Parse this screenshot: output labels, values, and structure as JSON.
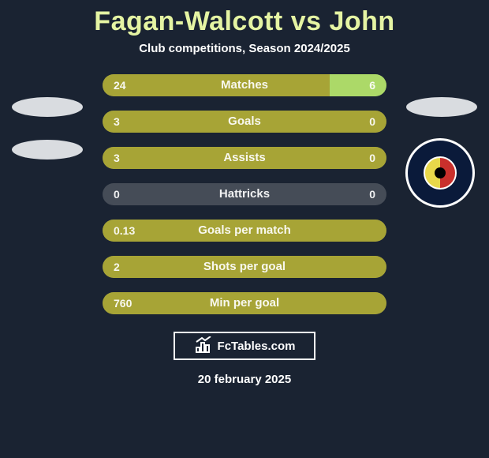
{
  "title": "Fagan-Walcott vs John",
  "subtitle": "Club competitions, Season 2024/2025",
  "footer_brand": "FcTables.com",
  "footer_date": "20 february 2025",
  "colors": {
    "title": "#e5f4a3",
    "background": "#1a2332",
    "bar_neutral": "#454c57",
    "bar_left_fill": "#a7a436",
    "bar_right_fill": "#acd968",
    "bar_full_fill": "#a7a436",
    "text": "#ffffff"
  },
  "stats": [
    {
      "label": "Matches",
      "left_val": "24",
      "right_val": "6",
      "left_pct": 80,
      "right_pct": 20,
      "left_color": "#a7a436",
      "right_color": "#acd968"
    },
    {
      "label": "Goals",
      "left_val": "3",
      "right_val": "0",
      "left_pct": 100,
      "right_pct": 0,
      "left_color": "#a7a436",
      "right_color": "#acd968"
    },
    {
      "label": "Assists",
      "left_val": "3",
      "right_val": "0",
      "left_pct": 100,
      "right_pct": 0,
      "left_color": "#a7a436",
      "right_color": "#acd968"
    },
    {
      "label": "Hattricks",
      "left_val": "0",
      "right_val": "0",
      "left_pct": 0,
      "right_pct": 0,
      "left_color": "#a7a436",
      "right_color": "#acd968"
    },
    {
      "label": "Goals per match",
      "left_val": "0.13",
      "right_val": "",
      "left_pct": 100,
      "right_pct": 0,
      "left_color": "#a7a436",
      "right_color": "#acd968"
    },
    {
      "label": "Shots per goal",
      "left_val": "2",
      "right_val": "",
      "left_pct": 100,
      "right_pct": 0,
      "left_color": "#a7a436",
      "right_color": "#acd968"
    },
    {
      "label": "Min per goal",
      "left_val": "760",
      "right_val": "",
      "left_pct": 100,
      "right_pct": 0,
      "left_color": "#a7a436",
      "right_color": "#acd968"
    }
  ]
}
